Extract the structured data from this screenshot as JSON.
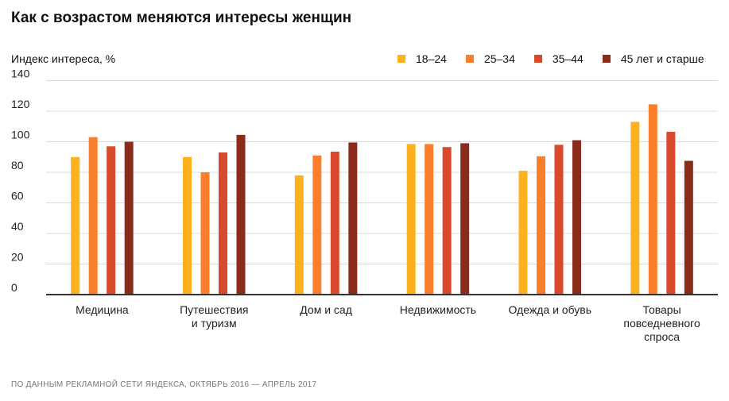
{
  "title": "Как с возрастом меняются интересы женщин",
  "source": "ПО ДАННЫМ РЕКЛАМНОЙ СЕТИ ЯНДЕКСА, ОКТЯБРЬ 2016 — АПРЕЛЬ 2017",
  "chart_data": {
    "type": "bar",
    "title": "Как с возрастом меняются интересы женщин",
    "ylabel": "Индекс интереса, %",
    "xlabel": "",
    "ylim": [
      0,
      140
    ],
    "yticks": [
      "0",
      "20",
      "40",
      "60",
      "80",
      "100",
      "120",
      "140"
    ],
    "grid": true,
    "legend_position": "top-right",
    "categories": [
      [
        "Медицина"
      ],
      [
        "Путешествия",
        "и туризм"
      ],
      [
        "Дом и сад"
      ],
      [
        "Недвижимость"
      ],
      [
        "Одежда и обувь"
      ],
      [
        "Товары",
        "повседневного",
        "спроса"
      ]
    ],
    "series": [
      {
        "name": "18–24",
        "color": "#fdb21d",
        "values": [
          90,
          90,
          78,
          98.5,
          81,
          113
        ]
      },
      {
        "name": "25–34",
        "color": "#fb7e2b",
        "values": [
          103,
          80,
          91,
          98.5,
          90.5,
          124.5
        ]
      },
      {
        "name": "35–44",
        "color": "#d9492b",
        "values": [
          97,
          93,
          93.5,
          96.5,
          98,
          106.5
        ]
      },
      {
        "name": "45 лет и старше",
        "color": "#8b2b1b",
        "values": [
          100,
          104.5,
          99.5,
          99,
          101,
          87.5
        ]
      }
    ]
  }
}
